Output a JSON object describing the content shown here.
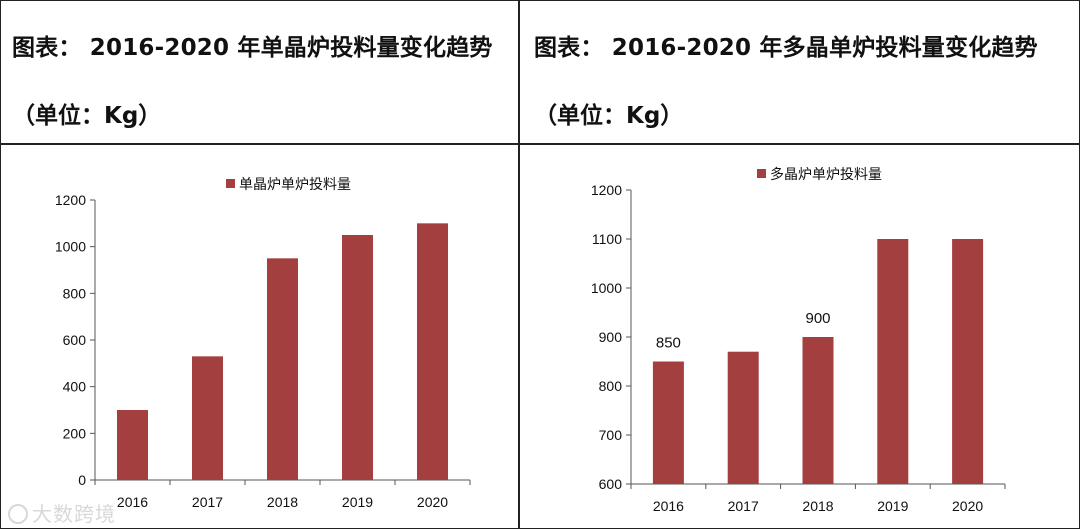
{
  "colors": {
    "bar": "#a33f3f",
    "axis": "#555555",
    "text": "#111111"
  },
  "panels": [
    {
      "title": "图表：   2016-2020 年单晶炉投料量变化趋势",
      "unit": "（单位：Kg）"
    },
    {
      "title": "图表：   2016-2020  年多晶单炉投料量变化趋势",
      "unit": "（单位：Kg）"
    }
  ],
  "watermark": {
    "icon": "logo-icon",
    "text": "大数跨境"
  },
  "chart_data": [
    {
      "type": "bar",
      "title": "2016-2020 年单晶炉投料量变化趋势",
      "legend": "单晶炉单炉投料量",
      "legend_position": "top-center",
      "categories": [
        "2016",
        "2017",
        "2018",
        "2019",
        "2020"
      ],
      "values": [
        300,
        530,
        950,
        1050,
        1100
      ],
      "ylim": [
        0,
        1200
      ],
      "yticks": [
        0,
        200,
        400,
        600,
        800,
        1000,
        1200
      ],
      "data_labels": [],
      "xlabel": "",
      "ylabel": ""
    },
    {
      "type": "bar",
      "title": "2016-2020 年多晶单炉投料量变化趋势",
      "legend": "多晶炉单炉投料量",
      "legend_position": "top-center",
      "categories": [
        "2016",
        "2017",
        "2018",
        "2019",
        "2020"
      ],
      "values": [
        850,
        870,
        900,
        1100,
        1100
      ],
      "ylim": [
        600,
        1200
      ],
      "yticks": [
        600,
        700,
        800,
        900,
        1000,
        1100,
        1200
      ],
      "data_labels": [
        {
          "index": 0,
          "text": "850"
        },
        {
          "index": 2,
          "text": "900"
        }
      ],
      "xlabel": "",
      "ylabel": ""
    }
  ]
}
